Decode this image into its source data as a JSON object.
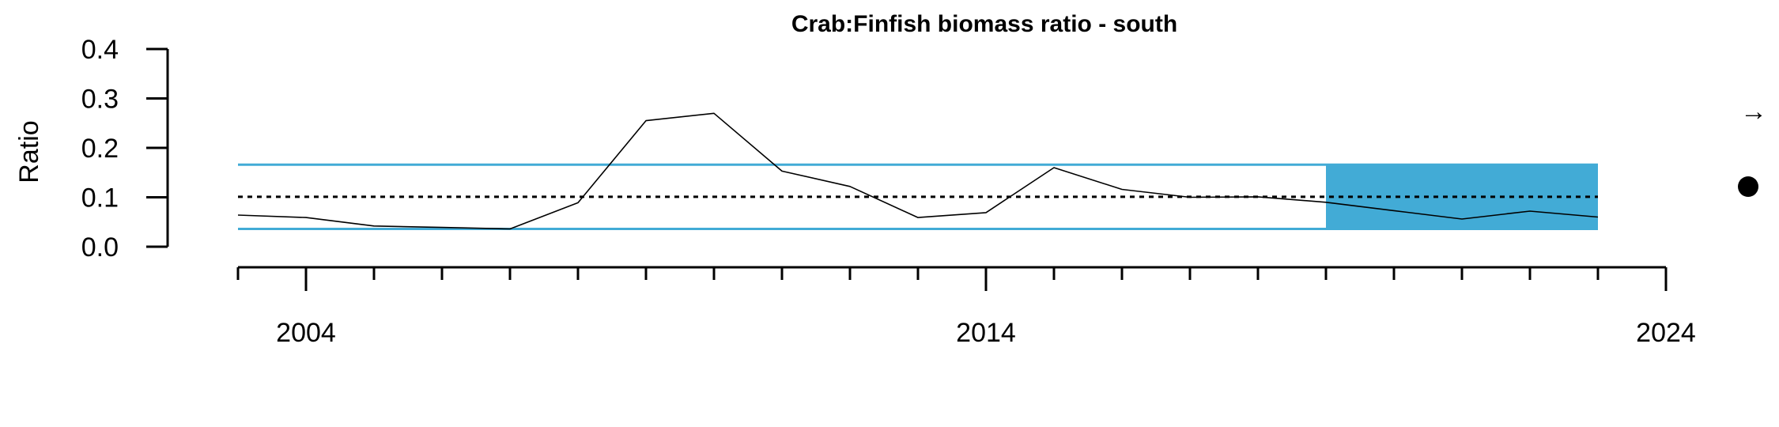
{
  "chart_data": {
    "type": "line",
    "title": "Crab:Finfish biomass ratio - south",
    "ylabel": "Ratio",
    "xlabel": "",
    "xlim": [
      2002,
      2024
    ],
    "ylim": [
      0,
      0.4
    ],
    "y_ticks": [
      0.0,
      0.1,
      0.2,
      0.3,
      0.4
    ],
    "y_tick_labels": [
      "0.0",
      "0.1",
      "0.2",
      "0.3",
      "0.4"
    ],
    "x_major_ticks": [
      2004,
      2014,
      2024
    ],
    "x_major_labels": [
      "2004",
      "2014",
      "2024"
    ],
    "x_minor_ticks": [
      2003,
      2005,
      2006,
      2007,
      2008,
      2009,
      2010,
      2011,
      2012,
      2013,
      2015,
      2016,
      2017,
      2018,
      2019,
      2020,
      2021,
      2022,
      2023
    ],
    "series": [
      {
        "x": [
          2003,
          2004,
          2005,
          2006,
          2007,
          2008,
          2009,
          2010,
          2011,
          2012,
          2013,
          2014,
          2015,
          2016,
          2017,
          2018,
          2019,
          2020,
          2021,
          2022,
          2023
        ],
        "values": [
          0.064,
          0.059,
          0.042,
          0.039,
          0.036,
          0.089,
          0.255,
          0.27,
          0.153,
          0.122,
          0.059,
          0.069,
          0.16,
          0.116,
          0.1,
          0.101,
          0.09,
          0.073,
          0.056,
          0.072,
          0.06
        ],
        "color": "#000000"
      }
    ],
    "mean_line": 0.101,
    "upper_band": 0.166,
    "lower_band": 0.036,
    "band_color": "#42ABD6",
    "highlight": {
      "x_range": [
        2019,
        2023
      ],
      "y_range": [
        0.036,
        0.166
      ],
      "color": "#42ABD6"
    },
    "indicators": {
      "trend": {
        "symbol": "→",
        "icon": "arrow-right-icon"
      },
      "status": {
        "symbol": "●",
        "icon": "filled-circle-icon"
      }
    }
  }
}
